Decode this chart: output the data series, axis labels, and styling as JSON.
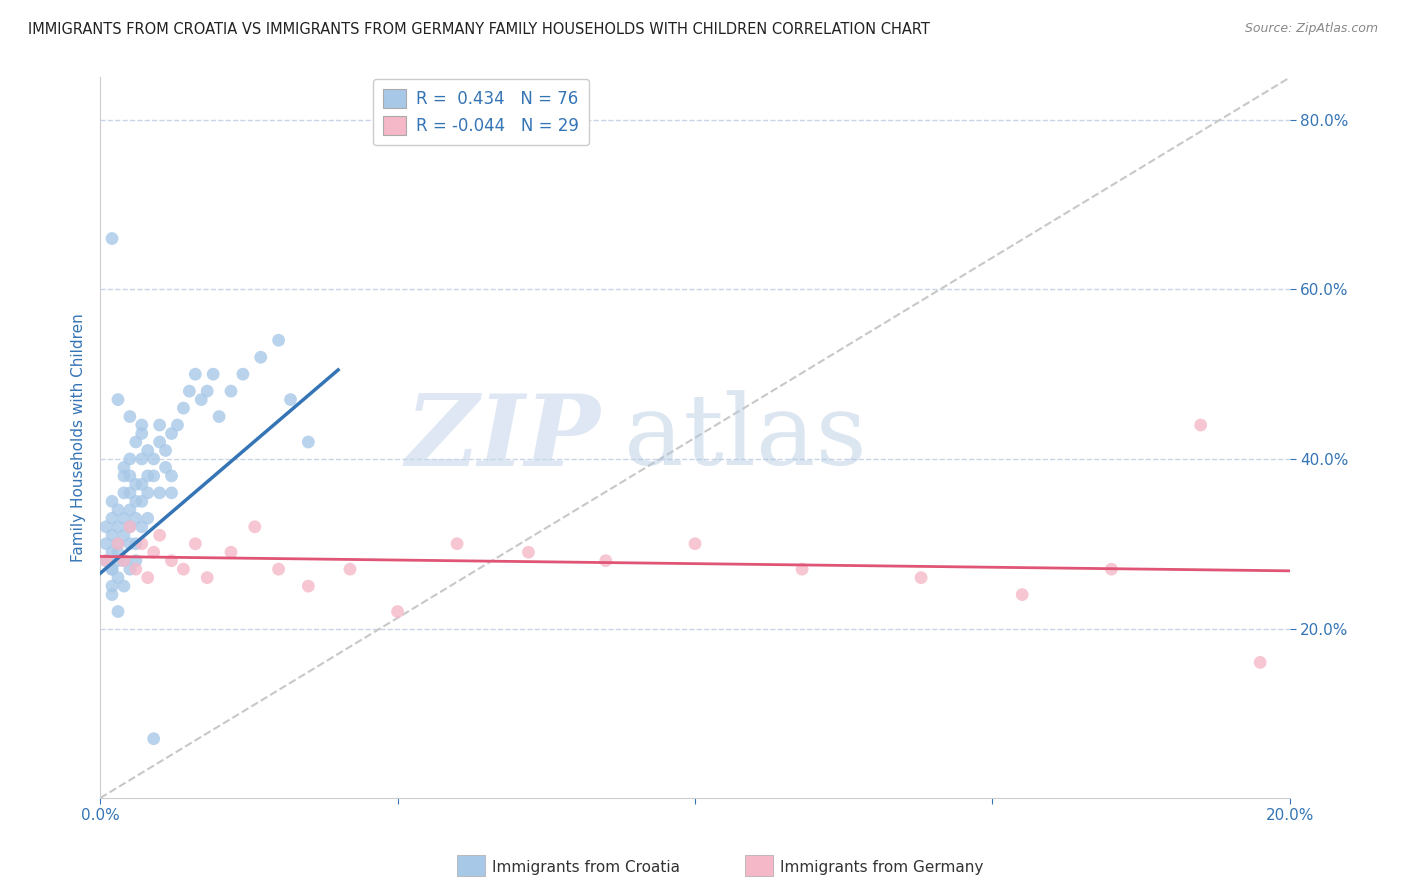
{
  "title": "IMMIGRANTS FROM CROATIA VS IMMIGRANTS FROM GERMANY FAMILY HOUSEHOLDS WITH CHILDREN CORRELATION CHART",
  "source": "Source: ZipAtlas.com",
  "ylabel": "Family Households with Children",
  "xlim": [
    0.0,
    0.2
  ],
  "ylim": [
    0.0,
    0.85
  ],
  "xticks": [
    0.0,
    0.05,
    0.1,
    0.15,
    0.2
  ],
  "yticks": [
    0.2,
    0.4,
    0.6,
    0.8
  ],
  "croatia_color": "#a8c8e8",
  "germany_color": "#f4b8c8",
  "croatia_line_color": "#3575b5",
  "germany_line_color": "#e05575",
  "diagonal_color": "#c8c8c8",
  "legend_text_color": "#3575b5",
  "axis_label_color": "#3575b5",
  "tick_color": "#3575b5",
  "R_croatia": 0.434,
  "N_croatia": 76,
  "R_germany": -0.044,
  "N_germany": 29,
  "watermark_zip": "ZIP",
  "watermark_atlas": "atlas",
  "background_color": "#ffffff",
  "grid_color": "#c8d4e8",
  "croatia_x": [
    0.001,
    0.001,
    0.001,
    0.002,
    0.002,
    0.002,
    0.002,
    0.002,
    0.002,
    0.002,
    0.002,
    0.003,
    0.003,
    0.003,
    0.003,
    0.003,
    0.003,
    0.003,
    0.004,
    0.004,
    0.004,
    0.004,
    0.004,
    0.004,
    0.005,
    0.005,
    0.005,
    0.005,
    0.005,
    0.005,
    0.005,
    0.006,
    0.006,
    0.006,
    0.006,
    0.006,
    0.006,
    0.007,
    0.007,
    0.007,
    0.007,
    0.007,
    0.008,
    0.008,
    0.008,
    0.008,
    0.009,
    0.009,
    0.01,
    0.01,
    0.01,
    0.011,
    0.011,
    0.012,
    0.012,
    0.013,
    0.014,
    0.015,
    0.016,
    0.017,
    0.018,
    0.019,
    0.02,
    0.022,
    0.024,
    0.027,
    0.03,
    0.032,
    0.035,
    0.002,
    0.003,
    0.004,
    0.005,
    0.007,
    0.009,
    0.012
  ],
  "croatia_y": [
    0.3,
    0.28,
    0.32,
    0.27,
    0.29,
    0.31,
    0.33,
    0.35,
    0.25,
    0.27,
    0.24,
    0.28,
    0.3,
    0.32,
    0.26,
    0.34,
    0.22,
    0.29,
    0.31,
    0.33,
    0.36,
    0.28,
    0.25,
    0.38,
    0.32,
    0.34,
    0.36,
    0.3,
    0.27,
    0.38,
    0.4,
    0.33,
    0.35,
    0.37,
    0.3,
    0.28,
    0.42,
    0.35,
    0.37,
    0.4,
    0.32,
    0.44,
    0.36,
    0.38,
    0.41,
    0.33,
    0.38,
    0.4,
    0.42,
    0.36,
    0.44,
    0.39,
    0.41,
    0.43,
    0.38,
    0.44,
    0.46,
    0.48,
    0.5,
    0.47,
    0.48,
    0.5,
    0.45,
    0.48,
    0.5,
    0.52,
    0.54,
    0.47,
    0.42,
    0.66,
    0.47,
    0.39,
    0.45,
    0.43,
    0.07,
    0.36
  ],
  "germany_x": [
    0.001,
    0.003,
    0.004,
    0.005,
    0.006,
    0.007,
    0.008,
    0.009,
    0.01,
    0.012,
    0.014,
    0.016,
    0.018,
    0.022,
    0.026,
    0.03,
    0.035,
    0.042,
    0.05,
    0.06,
    0.072,
    0.085,
    0.1,
    0.118,
    0.138,
    0.155,
    0.17,
    0.185,
    0.195
  ],
  "germany_y": [
    0.28,
    0.3,
    0.28,
    0.32,
    0.27,
    0.3,
    0.26,
    0.29,
    0.31,
    0.28,
    0.27,
    0.3,
    0.26,
    0.29,
    0.32,
    0.27,
    0.25,
    0.27,
    0.22,
    0.3,
    0.29,
    0.28,
    0.3,
    0.27,
    0.26,
    0.24,
    0.27,
    0.44,
    0.16
  ],
  "croatia_line_x": [
    0.0,
    0.04
  ],
  "croatia_line_y": [
    0.265,
    0.505
  ],
  "germany_line_x": [
    0.0,
    0.2
  ],
  "germany_line_y": [
    0.285,
    0.268
  ]
}
